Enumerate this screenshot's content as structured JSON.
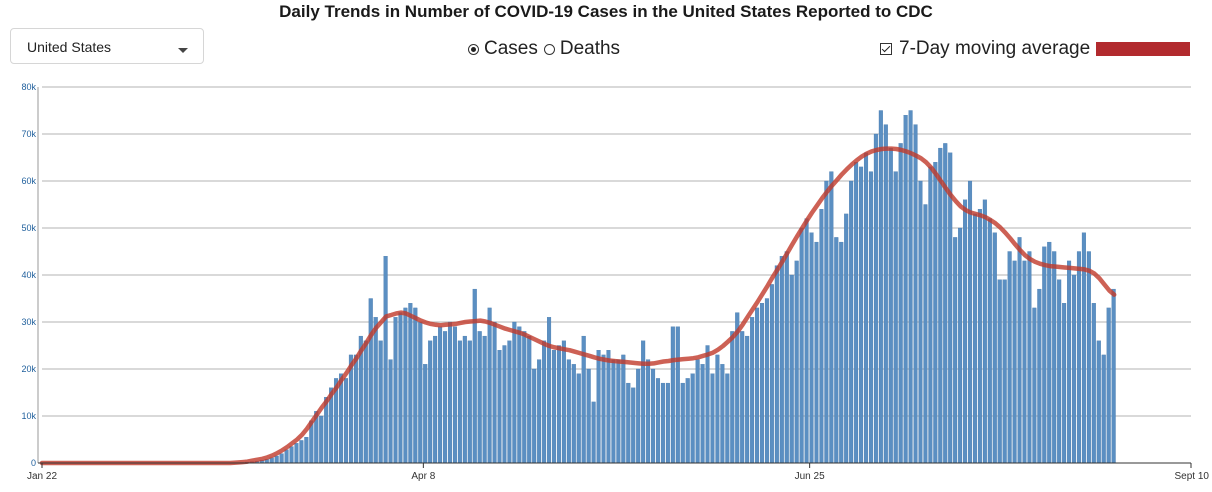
{
  "header": {
    "title": "Daily Trends in Number of COVID-19 Cases in the United States Reported to CDC"
  },
  "controls": {
    "location_select": {
      "value": "United States"
    },
    "metric_options": [
      {
        "label": "Cases",
        "selected": true
      },
      {
        "label": "Deaths",
        "selected": false
      }
    ],
    "moving_average": {
      "label": "7-Day moving average",
      "checked": true,
      "color": "#b22a2e"
    }
  },
  "colors": {
    "bar": "#5b8fc2",
    "bar_edge": "#3d72a8",
    "line": "#c0392b",
    "grid": "#9a9a9a"
  },
  "chart_data": {
    "type": "bar",
    "title": "Daily Trends in Number of COVID-19 Cases in the United States Reported to CDC",
    "x_range": [
      "2020-01-22",
      "2020-09-10"
    ],
    "x_ticks": [
      "Jan 22",
      "Apr 8",
      "Jun 25",
      "Sept 10"
    ],
    "y_ticks": [
      "0",
      "10k",
      "20k",
      "30k",
      "40k",
      "50k",
      "60k",
      "70k",
      "80k"
    ],
    "ylim": [
      0,
      80000
    ],
    "grid": true,
    "series": [
      {
        "name": "Cases",
        "type": "bar",
        "start_date": "2020-03-01",
        "values": [
          0,
          100,
          200,
          300,
          400,
          600,
          800,
          1100,
          1500,
          2000,
          2800,
          3500,
          4200,
          4800,
          5500,
          9000,
          11000,
          10000,
          14000,
          16000,
          18000,
          19000,
          18000,
          23000,
          23000,
          27000,
          26000,
          35000,
          31000,
          26000,
          44000,
          22000,
          31000,
          32000,
          33000,
          34000,
          33000,
          30000,
          21000,
          26000,
          27000,
          29000,
          28000,
          30000,
          29000,
          26000,
          27000,
          26000,
          37000,
          28000,
          27000,
          33000,
          30000,
          24000,
          25000,
          26000,
          30000,
          29000,
          28000,
          27000,
          20000,
          22000,
          26000,
          31000,
          24000,
          25000,
          26000,
          22000,
          21000,
          19000,
          27000,
          20000,
          13000,
          24000,
          23000,
          24000,
          22000,
          22000,
          23000,
          17000,
          16000,
          20000,
          26000,
          22000,
          20000,
          18000,
          17000,
          17000,
          29000,
          29000,
          17000,
          18000,
          19000,
          22000,
          21000,
          25000,
          19000,
          23000,
          21000,
          19000,
          28000,
          32000,
          28000,
          27000,
          31000,
          33000,
          34000,
          35000,
          38000,
          42000,
          44000,
          45000,
          40000,
          43000,
          50000,
          52000,
          49000,
          47000,
          54000,
          60000,
          62000,
          48000,
          47000,
          53000,
          60000,
          64000,
          63000,
          66000,
          62000,
          70000,
          75000,
          72000,
          67000,
          62000,
          68000,
          74000,
          75000,
          72000,
          60000,
          55000,
          63000,
          64000,
          67000,
          68000,
          66000,
          48000,
          50000,
          56000,
          60000,
          53000,
          54000,
          56000,
          52000,
          49000,
          39000,
          39000,
          45000,
          43000,
          48000,
          43000,
          45000,
          33000,
          37000,
          46000,
          47000,
          45000,
          39000,
          34000,
          43000,
          40000,
          45000,
          49000,
          45000,
          34000,
          26000,
          23000,
          33000,
          37000
        ]
      },
      {
        "name": "7-Day moving average",
        "type": "line",
        "start_date": "2020-03-01",
        "values": [
          100,
          200,
          300,
          500,
          700,
          900,
          1200,
          1600,
          2100,
          2700,
          3400,
          4200,
          5000,
          6000,
          7300,
          8800,
          10300,
          11800,
          13200,
          14700,
          16100,
          17700,
          19200,
          20800,
          22300,
          24000,
          25600,
          27300,
          28800,
          30000,
          31200,
          31500,
          31800,
          32000,
          31800,
          31300,
          30800,
          30300,
          29900,
          29600,
          29400,
          29300,
          29400,
          29500,
          29600,
          29800,
          30000,
          30100,
          30200,
          30300,
          30100,
          29800,
          29400,
          29000,
          28600,
          28300,
          28000,
          27700,
          27300,
          26800,
          26300,
          25800,
          25300,
          24900,
          24600,
          24400,
          24200,
          24000,
          23700,
          23400,
          23100,
          22800,
          22500,
          22200,
          22000,
          21800,
          21700,
          21600,
          21500,
          21400,
          21300,
          21200,
          21100,
          21100,
          21200,
          21400,
          21600,
          21700,
          21900,
          22000,
          22100,
          22200,
          22300,
          22500,
          22800,
          23100,
          23500,
          24100,
          24900,
          25800,
          26800,
          28000,
          29500,
          31100,
          32700,
          34300,
          36000,
          37700,
          39500,
          41200,
          42900,
          44700,
          46500,
          48300,
          50000,
          51700,
          53300,
          54800,
          56300,
          57700,
          59000,
          60200,
          61400,
          62500,
          63500,
          64400,
          65200,
          65800,
          66300,
          66600,
          66800,
          66900,
          66900,
          66800,
          66600,
          66300,
          65900,
          65400,
          64800,
          64000,
          62900,
          61500,
          60000,
          58500,
          57000,
          55700,
          54600,
          53800,
          53300,
          53000,
          52700,
          52300,
          51700,
          51000,
          50100,
          49000,
          47800,
          46500,
          45300,
          44200,
          43400,
          42800,
          42400,
          42100,
          41900,
          41800,
          41700,
          41600,
          41500,
          41400,
          41300,
          41200,
          40900,
          40300,
          39300,
          38000,
          36700,
          35800
        ]
      }
    ]
  }
}
